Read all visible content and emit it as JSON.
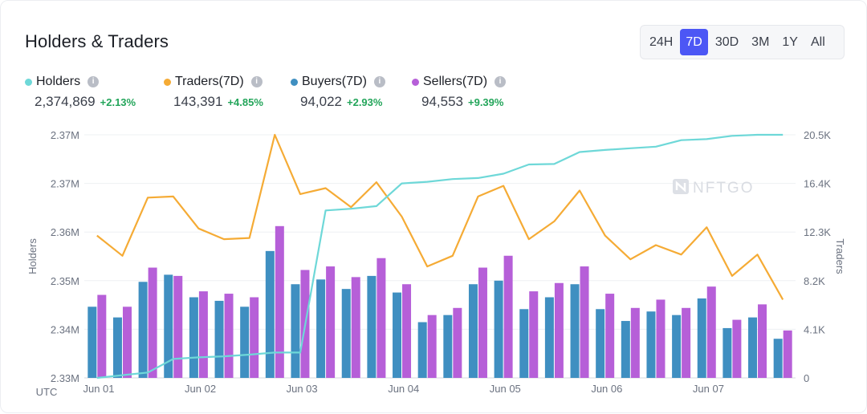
{
  "header": {
    "title": "Holders & Traders"
  },
  "time_range": {
    "options": [
      "24H",
      "7D",
      "30D",
      "3M",
      "1Y",
      "All"
    ],
    "selected": "7D"
  },
  "legend": [
    {
      "label": "Holders",
      "value": "2,374,869",
      "change": "+2.13%",
      "color": "#6ed8d8"
    },
    {
      "label": "Traders(7D)",
      "value": "143,391",
      "change": "+4.85%",
      "color": "#f5ab35"
    },
    {
      "label": "Buyers(7D)",
      "value": "94,022",
      "change": "+2.93%",
      "color": "#3f8fc1"
    },
    {
      "label": "Sellers(7D)",
      "value": "94,553",
      "change": "+9.39%",
      "color": "#b65fd8"
    }
  ],
  "watermark": "NFTGO",
  "chart_data": {
    "type": "bar",
    "title": "Holders & Traders",
    "xlabel": "UTC",
    "ylabel_left": "Holders",
    "ylabel_right": "Traders",
    "x_ticks": [
      "Jun 01",
      "Jun 02",
      "Jun 03",
      "Jun 04",
      "Jun 05",
      "Jun 06",
      "Jun 07"
    ],
    "left_axis": {
      "ticks": [
        "2.33M",
        "2.34M",
        "2.35M",
        "2.36M",
        "2.37M",
        "2.37M"
      ],
      "min": 2330000,
      "max": 2375000
    },
    "right_axis": {
      "ticks": [
        "0",
        "4.1K",
        "8.2K",
        "12.3K",
        "16.4K",
        "20.5K"
      ],
      "min": 0,
      "max": 20500
    },
    "series": [
      {
        "name": "Buyers(7D)",
        "type": "bar",
        "axis": "right",
        "color": "#3f8fc1",
        "values": [
          6000,
          5100,
          8100,
          8700,
          6800,
          6500,
          6000,
          10700,
          7900,
          8300,
          7500,
          8600,
          7200,
          4700,
          5300,
          7900,
          8200,
          5800,
          6800,
          7900,
          5800,
          4800,
          5600,
          5300,
          6700,
          4200,
          5100,
          3300
        ]
      },
      {
        "name": "Sellers(7D)",
        "type": "bar",
        "axis": "right",
        "color": "#b65fd8",
        "values": [
          7000,
          6000,
          9300,
          8600,
          7300,
          7100,
          6800,
          12800,
          9100,
          9400,
          8500,
          10100,
          7900,
          5300,
          5900,
          9300,
          10300,
          7300,
          8000,
          9400,
          7100,
          5900,
          6600,
          5900,
          7700,
          4900,
          6200,
          4000
        ]
      },
      {
        "name": "Traders(7D)",
        "type": "line",
        "axis": "right",
        "color": "#f5ab35",
        "values": [
          12000,
          10300,
          15200,
          15300,
          12600,
          11700,
          11800,
          20500,
          15500,
          16000,
          14400,
          16500,
          13600,
          9400,
          10300,
          15300,
          16200,
          11700,
          13200,
          15800,
          12000,
          10000,
          11200,
          10400,
          12700,
          8600,
          10400,
          6600
        ]
      },
      {
        "name": "Holders",
        "type": "line",
        "axis": "left",
        "color": "#6ed8d8",
        "values": [
          2330000,
          2330500,
          2331000,
          2333500,
          2333800,
          2334000,
          2334300,
          2334700,
          2334700,
          2361000,
          2361300,
          2361800,
          2366000,
          2366300,
          2366800,
          2367000,
          2367800,
          2369500,
          2369600,
          2371800,
          2372200,
          2372500,
          2372800,
          2374000,
          2374200,
          2374800,
          2375000,
          2375000
        ]
      }
    ]
  }
}
